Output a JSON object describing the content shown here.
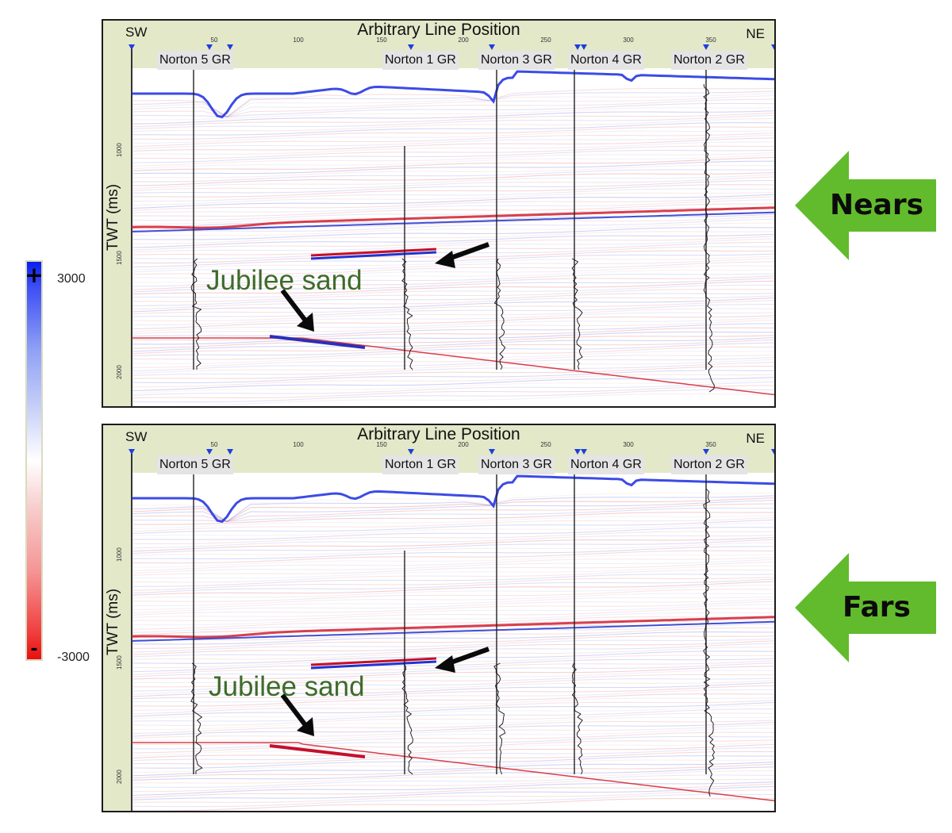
{
  "colorbar": {
    "max_label": "3000",
    "min_label": "-3000",
    "plus": "+",
    "minus": "-"
  },
  "panels": [
    {
      "title": "Arbitrary Line Position",
      "left_label": "SW",
      "right_label": "NE",
      "y_label": "TWT (ms)",
      "x_ticks": [
        "50",
        "100",
        "150",
        "200",
        "250",
        "300",
        "350"
      ],
      "y_ticks": [
        "1000",
        "1500",
        "2000"
      ],
      "wells": [
        "Norton 5 GR",
        "Norton 1 GR",
        "Norton 3 GR",
        "Norton 4 GR",
        "Norton 2 GR"
      ],
      "annotation": "Jubilee sand",
      "badge": "Nears",
      "badge_color": "#62bb2d"
    },
    {
      "title": "Arbitrary Line Position",
      "left_label": "SW",
      "right_label": "NE",
      "y_label": "TWT (ms)",
      "x_ticks": [
        "50",
        "100",
        "150",
        "200",
        "250",
        "300",
        "350"
      ],
      "y_ticks": [
        "1000",
        "1500",
        "2000"
      ],
      "wells": [
        "Norton 5 GR",
        "Norton 1 GR",
        "Norton 3 GR",
        "Norton 4 GR",
        "Norton 2 GR"
      ],
      "annotation": "Jubilee sand",
      "badge": "Fars",
      "badge_color": "#62bb2d"
    }
  ]
}
